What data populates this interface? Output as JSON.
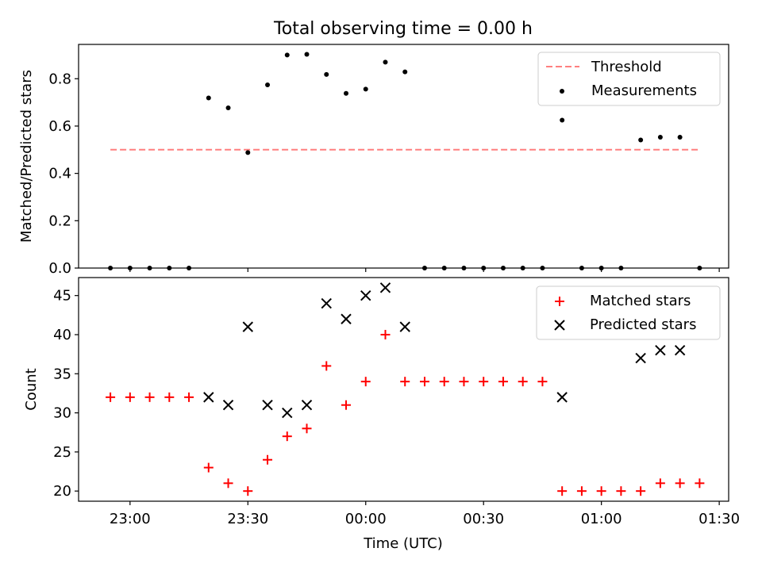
{
  "figure": {
    "title": "Total observing time = 0.00 h",
    "xlabel": "Time (UTC)"
  },
  "x_ticks": [
    "23:00",
    "23:30",
    "00:00",
    "00:30",
    "01:00",
    "01:30"
  ],
  "x_tick_minutes": [
    -60,
    -30,
    0,
    30,
    60,
    90
  ],
  "colors": {
    "threshold": "#ff7f7f",
    "measurements": "#000000",
    "matched": "#ff0000",
    "predicted": "#000000"
  },
  "chart_data": [
    {
      "type": "scatter",
      "ylabel": "Matched/Predicted stars",
      "xlim": [
        -73.1,
        92.4
      ],
      "ylim": [
        0,
        0.945
      ],
      "yticks": [
        "0.0",
        "0.2",
        "0.4",
        "0.6",
        "0.8"
      ],
      "ytick_values": [
        0,
        0.2,
        0.4,
        0.6,
        0.8
      ],
      "legend": {
        "placement": "upper-right",
        "entries": [
          "Threshold",
          "Measurements"
        ]
      },
      "threshold": {
        "name": "Threshold",
        "value": 0.5,
        "x_start": -65,
        "x_end": 85
      },
      "series": [
        {
          "name": "Measurements",
          "x": [
            -65,
            -60,
            -55,
            -50,
            -45,
            -40,
            -35,
            -30,
            -25,
            -20,
            -15,
            -10,
            -5,
            0,
            5,
            10,
            15,
            20,
            25,
            30,
            35,
            40,
            45,
            50,
            55,
            60,
            65,
            70,
            75,
            80,
            85
          ],
          "y": [
            0,
            0,
            0,
            0,
            0,
            0.719,
            0.677,
            0.488,
            0.774,
            0.9,
            0.903,
            0.818,
            0.738,
            0.756,
            0.87,
            0.829,
            0,
            0,
            0,
            0,
            0,
            0,
            0,
            0.625,
            0,
            0,
            0,
            0.541,
            0.553,
            0.553,
            0
          ]
        }
      ]
    },
    {
      "type": "scatter",
      "ylabel": "Count",
      "xlim": [
        -73.1,
        92.4
      ],
      "ylim": [
        18.7,
        47.3
      ],
      "yticks": [
        "20",
        "25",
        "30",
        "35",
        "40",
        "45"
      ],
      "ytick_values": [
        20,
        25,
        30,
        35,
        40,
        45
      ],
      "legend": {
        "placement": "upper-right",
        "entries": [
          "Matched stars",
          "Predicted stars"
        ]
      },
      "series": [
        {
          "name": "Matched stars",
          "marker": "plus",
          "x": [
            -65,
            -60,
            -55,
            -50,
            -45,
            -40,
            -35,
            -30,
            -25,
            -20,
            -15,
            -10,
            -5,
            0,
            5,
            10,
            15,
            20,
            25,
            30,
            35,
            40,
            45,
            50,
            55,
            60,
            65,
            70,
            75,
            80,
            85
          ],
          "y": [
            32,
            32,
            32,
            32,
            32,
            23,
            21,
            20,
            24,
            27,
            28,
            36,
            31,
            34,
            40,
            34,
            34,
            34,
            34,
            34,
            34,
            34,
            34,
            20,
            20,
            20,
            20,
            20,
            21,
            21,
            21
          ]
        },
        {
          "name": "Predicted stars",
          "marker": "x",
          "x": [
            -40,
            -35,
            -30,
            -25,
            -20,
            -15,
            -10,
            -5,
            0,
            5,
            10,
            50,
            70,
            75,
            80
          ],
          "y": [
            32,
            31,
            41,
            31,
            30,
            31,
            44,
            42,
            45,
            46,
            41,
            32,
            37,
            38,
            38
          ]
        }
      ]
    }
  ]
}
